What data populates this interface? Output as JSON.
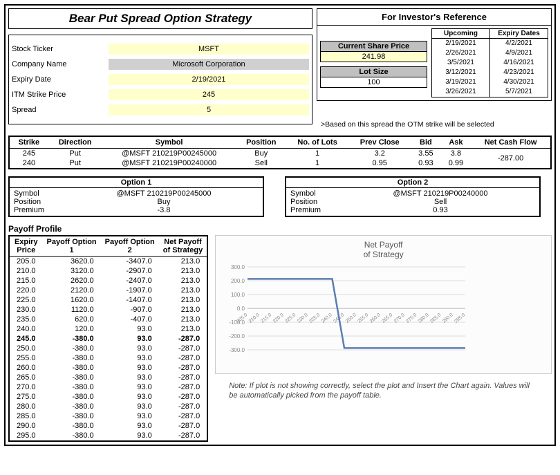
{
  "title": "Bear Put Spread Option Strategy",
  "ref_title": "For Investor's Reference",
  "inputs": {
    "ticker_label": "Stock Ticker",
    "ticker": "MSFT",
    "company_label": "Company Name",
    "company": "Microsoft Corporation",
    "expiry_label": "Expiry Date",
    "expiry": "2/19/2021",
    "strike_label": "ITM Strike Price",
    "strike": "245",
    "spread_label": "Spread",
    "spread": "5",
    "spread_note": ">Based on this spread the OTM strike will be selected"
  },
  "ref": {
    "csp_label": "Current Share Price",
    "csp": "241.98",
    "lot_label": "Lot Size",
    "lot": "100",
    "expiry_head1": "Upcoming",
    "expiry_head2": "Expiry Dates",
    "dates": [
      [
        "2/19/2021",
        "4/2/2021"
      ],
      [
        "2/26/2021",
        "4/9/2021"
      ],
      [
        "3/5/2021",
        "4/16/2021"
      ],
      [
        "3/12/2021",
        "4/23/2021"
      ],
      [
        "3/19/2021",
        "4/30/2021"
      ],
      [
        "3/26/2021",
        "5/7/2021"
      ]
    ]
  },
  "main": {
    "headers": [
      "Strike",
      "Direction",
      "Symbol",
      "Position",
      "No. of Lots",
      "Prev Close",
      "Bid",
      "Ask",
      "Net Cash Flow"
    ],
    "rows": [
      [
        "245",
        "Put",
        "@MSFT 210219P00245000",
        "Buy",
        "1",
        "3.2",
        "3.55",
        "3.8",
        ""
      ],
      [
        "240",
        "Put",
        "@MSFT 210219P00240000",
        "Sell",
        "1",
        "0.95",
        "0.93",
        "0.99",
        ""
      ]
    ],
    "ncf": "-287.00"
  },
  "opt1": {
    "title": "Option 1",
    "sym_l": "Symbol",
    "sym": "@MSFT 210219P00245000",
    "pos_l": "Position",
    "pos": "Buy",
    "prem_l": "Premium",
    "prem": "-3.8"
  },
  "opt2": {
    "title": "Option 2",
    "sym_l": "Symbol",
    "sym": "@MSFT 210219P00240000",
    "pos_l": "Position",
    "pos": "Sell",
    "prem_l": "Premium",
    "prem": "0.93"
  },
  "payoff_title": "Payoff Profile",
  "payoff_headers": [
    "Expiry Price",
    "Payoff Option 1",
    "Payoff Option 2",
    "Net Payoff of Strategy"
  ],
  "payoff_rows": [
    [
      "205.0",
      "3620.0",
      "-3407.0",
      "213.0"
    ],
    [
      "210.0",
      "3120.0",
      "-2907.0",
      "213.0"
    ],
    [
      "215.0",
      "2620.0",
      "-2407.0",
      "213.0"
    ],
    [
      "220.0",
      "2120.0",
      "-1907.0",
      "213.0"
    ],
    [
      "225.0",
      "1620.0",
      "-1407.0",
      "213.0"
    ],
    [
      "230.0",
      "1120.0",
      "-907.0",
      "213.0"
    ],
    [
      "235.0",
      "620.0",
      "-407.0",
      "213.0"
    ],
    [
      "240.0",
      "120.0",
      "93.0",
      "213.0"
    ],
    [
      "245.0",
      "-380.0",
      "93.0",
      "-287.0"
    ],
    [
      "250.0",
      "-380.0",
      "93.0",
      "-287.0"
    ],
    [
      "255.0",
      "-380.0",
      "93.0",
      "-287.0"
    ],
    [
      "260.0",
      "-380.0",
      "93.0",
      "-287.0"
    ],
    [
      "265.0",
      "-380.0",
      "93.0",
      "-287.0"
    ],
    [
      "270.0",
      "-380.0",
      "93.0",
      "-287.0"
    ],
    [
      "275.0",
      "-380.0",
      "93.0",
      "-287.0"
    ],
    [
      "280.0",
      "-380.0",
      "93.0",
      "-287.0"
    ],
    [
      "285.0",
      "-380.0",
      "93.0",
      "-287.0"
    ],
    [
      "290.0",
      "-380.0",
      "93.0",
      "-287.0"
    ],
    [
      "295.0",
      "-380.0",
      "93.0",
      "-287.0"
    ]
  ],
  "payoff_bold_row": 8,
  "chart": {
    "title1": "Net Payoff",
    "title2": "of Strategy",
    "note": "Note: If plot is not showing correctly, select the plot and Insert the Chart again. Values will be automatically picked from the payoff table.",
    "y_ticks": [
      -300,
      -200,
      -100,
      0,
      100,
      200,
      300
    ],
    "x_labels": [
      "205.0",
      "210.0",
      "215.0",
      "220.0",
      "225.0",
      "230.0",
      "235.0",
      "240.0",
      "245.0",
      "250.0",
      "255.0",
      "260.0",
      "265.0",
      "270.0",
      "275.0",
      "280.0",
      "285.0",
      "290.0",
      "295.0"
    ],
    "series": [
      213,
      213,
      213,
      213,
      213,
      213,
      213,
      213,
      -287,
      -287,
      -287,
      -287,
      -287,
      -287,
      -287,
      -287,
      -287,
      -287,
      -287
    ],
    "line_color": "#5b7db1",
    "grid_color": "#dcdcdc",
    "axis_color": "#b0b0b0",
    "text_color": "#888"
  }
}
